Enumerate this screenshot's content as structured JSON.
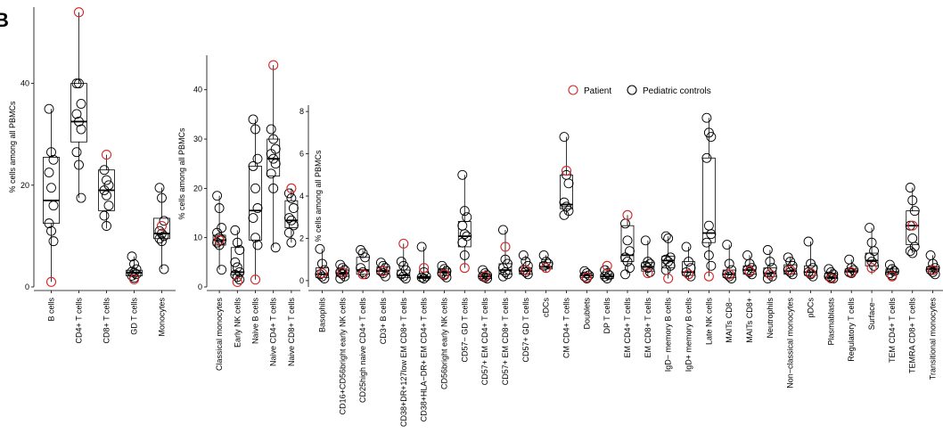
{
  "panel_label": "B",
  "legend": {
    "patient_label": "Patient",
    "controls_label": "Pediatric controls",
    "patient_color": "#d62728",
    "controls_color": "#000000"
  },
  "chart_data": [
    {
      "type": "box",
      "ylabel": "% cells among all PBMCs",
      "ylim": [
        0,
        55
      ],
      "yticks": [
        0,
        20,
        40
      ],
      "categories": [
        "B cells",
        "CD4+ T cells",
        "CD8+ T cells",
        "GD T cells",
        "Monocytes"
      ],
      "boxes": [
        {
          "min": 1,
          "q1": 12.5,
          "median": 17,
          "q3": 25.5,
          "max": 35
        },
        {
          "min": 17.5,
          "q1": 28.5,
          "median": 32.5,
          "q3": 40,
          "max": 54
        },
        {
          "min": 11.5,
          "q1": 15,
          "median": 19,
          "q3": 23,
          "max": 26
        },
        {
          "min": 1.5,
          "q1": 2.2,
          "median": 2.8,
          "q3": 3.3,
          "max": 6
        },
        {
          "min": 3.5,
          "q1": 9.5,
          "median": 10.5,
          "q3": 13.5,
          "max": 19.5
        }
      ],
      "controls": [
        [
          35,
          26.5,
          25,
          22.5,
          19.5,
          16,
          12.5,
          11,
          9
        ],
        [
          40,
          40,
          36,
          34,
          32.5,
          31,
          26.5,
          24,
          17.5
        ],
        [
          23,
          21,
          20,
          19,
          18,
          16,
          14,
          12
        ],
        [
          6,
          4.5,
          3.5,
          3,
          2.8,
          2.5,
          2.2,
          1.8
        ],
        [
          19.5,
          17.5,
          13,
          11,
          10.5,
          10,
          9.5,
          9,
          3.5
        ]
      ],
      "patient": [
        1,
        54,
        26,
        1.5,
        12
      ]
    },
    {
      "type": "box",
      "ylabel": "% cells among all PBMCs",
      "ylim": [
        0,
        47
      ],
      "yticks": [
        0,
        10,
        20,
        30,
        40
      ],
      "categories": [
        "Classical monocytes",
        "Early NK cells",
        "Naive B cells",
        "Naive CD4+ T cells",
        "Naive CD8+ T cells"
      ],
      "boxes": [
        {
          "min": 3.5,
          "q1": 8.5,
          "median": 9.5,
          "q3": 10.5,
          "max": 18.5
        },
        {
          "min": 1,
          "q1": 2.5,
          "median": 3,
          "q3": 8,
          "max": 11.5
        },
        {
          "min": 1.5,
          "q1": 9.5,
          "median": 15.5,
          "q3": 24.5,
          "max": 34
        },
        {
          "min": 8,
          "q1": 22.5,
          "median": 26,
          "q3": 30,
          "max": 45
        },
        {
          "min": 9,
          "q1": 12,
          "median": 13.5,
          "q3": 17.5,
          "max": 20
        }
      ],
      "controls": [
        [
          18.5,
          16,
          12,
          11,
          10,
          9.5,
          9,
          8.5,
          3.5
        ],
        [
          11.5,
          9,
          7.5,
          5,
          4,
          3,
          2.5,
          2,
          1.5
        ],
        [
          34,
          32,
          26,
          24.5,
          20,
          16,
          14,
          10,
          8.5
        ],
        [
          32,
          30,
          28,
          27,
          26,
          25,
          23,
          20,
          8
        ],
        [
          19,
          18,
          16,
          14,
          13.5,
          12.5,
          11,
          9
        ]
      ],
      "patient": [
        9.5,
        1,
        1.5,
        45,
        20
      ]
    },
    {
      "type": "box",
      "ylabel": "% cells among all PBMCs",
      "ylim": [
        -0.3,
        8.3
      ],
      "yticks": [
        0,
        2,
        4,
        6,
        8
      ],
      "categories": [
        "Basophils",
        "CD16+CD56bright early NK cells",
        "CD25high naive CD4+ T cells",
        "CD3+ B cells",
        "CD38+DR+127low EM CD8+ T cells",
        "CD38+HLA−DR+ EM CD4+ T cells",
        "CD56bright early NK cells",
        "CD57− GD T cells",
        "CD57+ EM CD4+ T cells",
        "CD57+ EM CD8+ T cells",
        "CD57+ GD T cells",
        "cDCs",
        "CM CD4+ T cells",
        "Doublets",
        "DP T cells",
        "EM CD4+ T cells",
        "EM CD8+ T cells",
        "IgD− memory B cells",
        "IgD+ memory B cells",
        "Late NK cells",
        "MAITs CD8−",
        "MAITs CD8+",
        "Neutrophils",
        "Non−classical monocytes",
        "pDCs",
        "Plasmablasts",
        "Regulatory T cells",
        "Surface−",
        "TEM CD4+ T cells",
        "TEMRA CD8+ T cells",
        "Transitional monocytes"
      ],
      "boxes": [
        {
          "min": 0.05,
          "q1": 0.15,
          "median": 0.3,
          "q3": 0.6,
          "max": 1.5
        },
        {
          "min": 0.05,
          "q1": 0.2,
          "median": 0.35,
          "q3": 0.5,
          "max": 0.75
        },
        {
          "min": 0.1,
          "q1": 0.3,
          "median": 0.5,
          "q3": 1.1,
          "max": 1.45
        },
        {
          "min": 0.1,
          "q1": 0.3,
          "median": 0.45,
          "q3": 0.65,
          "max": 0.85
        },
        {
          "min": 0.05,
          "q1": 0.15,
          "median": 0.25,
          "q3": 0.5,
          "max": 1.75
        },
        {
          "min": 0.05,
          "q1": 0.1,
          "median": 0.15,
          "q3": 0.2,
          "max": 1.6
        },
        {
          "min": 0.1,
          "q1": 0.25,
          "median": 0.4,
          "q3": 0.55,
          "max": 0.7
        },
        {
          "min": 0.6,
          "q1": 1.6,
          "median": 2.1,
          "q3": 2.8,
          "max": 5
        },
        {
          "min": 0.05,
          "q1": 0.1,
          "median": 0.2,
          "q3": 0.3,
          "max": 0.5
        },
        {
          "min": 0.1,
          "q1": 0.3,
          "median": 0.5,
          "q3": 0.8,
          "max": 2.4
        },
        {
          "min": 0.1,
          "q1": 0.3,
          "median": 0.45,
          "q3": 0.6,
          "max": 1.2
        },
        {
          "min": 0.4,
          "q1": 0.55,
          "median": 0.65,
          "q3": 0.85,
          "max": 1.2
        },
        {
          "min": 3.1,
          "q1": 3.4,
          "median": 3.6,
          "q3": 5,
          "max": 6.8
        },
        {
          "min": 0.05,
          "q1": 0.15,
          "median": 0.25,
          "q3": 0.35,
          "max": 0.45
        },
        {
          "min": 0.05,
          "q1": 0.1,
          "median": 0.2,
          "q3": 0.3,
          "max": 0.7
        },
        {
          "min": 0.3,
          "q1": 0.9,
          "median": 1.2,
          "q3": 2.6,
          "max": 3.1
        },
        {
          "min": 0.2,
          "q1": 0.45,
          "median": 0.65,
          "q3": 0.85,
          "max": 1.9
        },
        {
          "min": 0.1,
          "q1": 0.6,
          "median": 0.95,
          "q3": 1.15,
          "max": 2.1
        },
        {
          "min": 0.1,
          "q1": 0.25,
          "median": 0.4,
          "q3": 0.9,
          "max": 1.6
        },
        {
          "min": 0.2,
          "q1": 1.8,
          "median": 2.25,
          "q3": 5.8,
          "max": 7.7
        },
        {
          "min": 0.05,
          "q1": 0.15,
          "median": 0.3,
          "q3": 0.5,
          "max": 1.7
        },
        {
          "min": 0.1,
          "q1": 0.3,
          "median": 0.5,
          "q3": 0.7,
          "max": 1.2
        },
        {
          "min": 0.05,
          "q1": 0.2,
          "median": 0.35,
          "q3": 0.6,
          "max": 1.45
        },
        {
          "min": 0.1,
          "q1": 0.3,
          "median": 0.45,
          "q3": 0.75,
          "max": 1.1
        },
        {
          "min": 0.1,
          "q1": 0.25,
          "median": 0.4,
          "q3": 0.7,
          "max": 1.85
        },
        {
          "min": 0.05,
          "q1": 0.1,
          "median": 0.15,
          "q3": 0.35,
          "max": 0.55
        },
        {
          "min": 0.2,
          "q1": 0.4,
          "median": 0.45,
          "q3": 0.55,
          "max": 1.0
        },
        {
          "min": 0.3,
          "q1": 0.7,
          "median": 0.95,
          "q3": 1.3,
          "max": 2.5
        },
        {
          "min": 0.1,
          "q1": 0.3,
          "median": 0.4,
          "q3": 0.55,
          "max": 0.75
        },
        {
          "min": 1.3,
          "q1": 1.7,
          "median": 2.6,
          "q3": 3.3,
          "max": 4.4
        },
        {
          "min": 0.3,
          "q1": 0.45,
          "median": 0.55,
          "q3": 0.65,
          "max": 1.2
        }
      ],
      "controls": [
        [
          1.5,
          0.8,
          0.5,
          0.3,
          0.2,
          0.1
        ],
        [
          0.75,
          0.6,
          0.5,
          0.4,
          0.3,
          0.2,
          0.1
        ],
        [
          1.45,
          1.3,
          1.1,
          0.6,
          0.4,
          0.3
        ],
        [
          0.85,
          0.7,
          0.6,
          0.45,
          0.35,
          0.2
        ],
        [
          0.9,
          0.7,
          0.5,
          0.3,
          0.2,
          0.1
        ],
        [
          1.6,
          0.4,
          0.2,
          0.15,
          0.1
        ],
        [
          0.7,
          0.55,
          0.45,
          0.35,
          0.25,
          0.15
        ],
        [
          5,
          3.3,
          3,
          2.6,
          2.2,
          2.1,
          1.8,
          1.2
        ],
        [
          0.5,
          0.35,
          0.25,
          0.2,
          0.15,
          0.1
        ],
        [
          2.4,
          1.0,
          0.8,
          0.6,
          0.4,
          0.3,
          0.2
        ],
        [
          1.2,
          0.9,
          0.7,
          0.5,
          0.4,
          0.3
        ],
        [
          1.2,
          0.9,
          0.8,
          0.7,
          0.6
        ],
        [
          6.8,
          5,
          4.6,
          3.7,
          3.5,
          3.3,
          3.1
        ],
        [
          0.45,
          0.35,
          0.25,
          0.2,
          0.1
        ],
        [
          0.5,
          0.35,
          0.25,
          0.2,
          0.1
        ],
        [
          2.7,
          1.9,
          1.4,
          1.1,
          0.9,
          0.6,
          0.3
        ],
        [
          1.9,
          0.9,
          0.8,
          0.7,
          0.6,
          0.4
        ],
        [
          2.1,
          2.0,
          1.1,
          1.0,
          0.9,
          0.7,
          0.5
        ],
        [
          1.6,
          0.9,
          0.6,
          0.4,
          0.3,
          0.2
        ],
        [
          7.7,
          7,
          6.8,
          5.8,
          2.6,
          2.2,
          1.8,
          1.2,
          0.7
        ],
        [
          1.7,
          0.8,
          0.5,
          0.3,
          0.2,
          0.1
        ],
        [
          1.2,
          0.8,
          0.6,
          0.5,
          0.4,
          0.3
        ],
        [
          1.45,
          0.9,
          0.6,
          0.4,
          0.3,
          0.2,
          0.1
        ],
        [
          1.1,
          0.9,
          0.7,
          0.5,
          0.4,
          0.3
        ],
        [
          1.85,
          0.8,
          0.6,
          0.4,
          0.3,
          0.2
        ],
        [
          0.55,
          0.4,
          0.3,
          0.2,
          0.15,
          0.1
        ],
        [
          1.0,
          0.6,
          0.5,
          0.4,
          0.35
        ],
        [
          2.5,
          1.8,
          1.4,
          1.1,
          0.9,
          0.7
        ],
        [
          0.75,
          0.55,
          0.45,
          0.35,
          0.25
        ],
        [
          4.4,
          3.8,
          3.3,
          2.6,
          2.0,
          1.6,
          1.4,
          1.3
        ],
        [
          1.2,
          0.8,
          0.6,
          0.5,
          0.4,
          0.3
        ]
      ],
      "patient": [
        0.35,
        0.4,
        0.3,
        0.45,
        1.75,
        0.6,
        0.3,
        0.6,
        0.2,
        1.6,
        0.5,
        0.6,
        5.2,
        0.15,
        0.7,
        3.1,
        0.35,
        0.1,
        0.3,
        0.2,
        0.3,
        0.45,
        0.3,
        0.5,
        0.35,
        0.1,
        0.4,
        0.6,
        0.2,
        2.6,
        0.5
      ]
    }
  ]
}
